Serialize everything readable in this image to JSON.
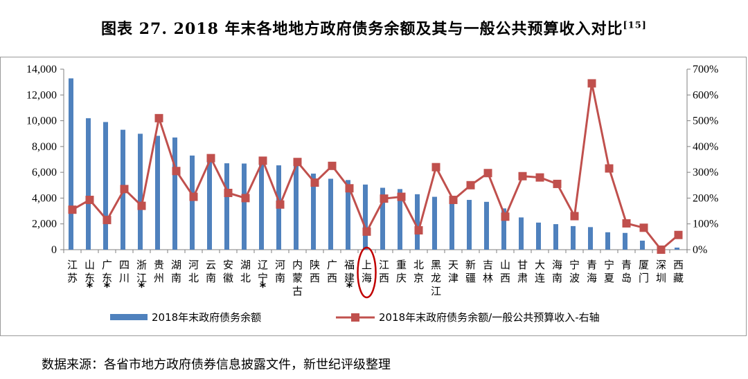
{
  "title": "图表 27. 2018 年末各地地方政府债务余额及其与一般公共预算收入对比",
  "title_ref": "[15]",
  "source": "数据来源：各省市地方政府债券信息披露文件，新世纪评级整理",
  "colors": {
    "bar": "#4f81bd",
    "line": "#c0504d",
    "highlight": "#c00000"
  },
  "chart_data": {
    "type": "bar+line",
    "categories": [
      "江苏",
      "山东",
      "广东",
      "四川",
      "浙江",
      "贵州",
      "湖南",
      "河北",
      "云南",
      "安徽",
      "湖北",
      "辽宁",
      "河南",
      "内蒙古",
      "陕西",
      "广西",
      "福建",
      "上海",
      "江西",
      "重庆",
      "北京",
      "黑龙江",
      "天津",
      "新疆",
      "吉林",
      "山西",
      "甘肃",
      "大连",
      "海南",
      "宁波",
      "青海",
      "宁夏",
      "青岛",
      "厦门",
      "深圳",
      "西藏"
    ],
    "category_labels": [
      "江苏",
      "山东*",
      "广东*",
      "四川",
      "浙江*",
      "贵州",
      "湖南",
      "河北",
      "云南",
      "安徽",
      "湖北",
      "辽宁*",
      "河南",
      "内蒙古",
      "陕西",
      "广西",
      "福建*",
      "上海",
      "江西",
      "重庆",
      "北京",
      "黑龙江",
      "天津",
      "新疆",
      "吉林",
      "山西",
      "甘肃",
      "大连",
      "海南",
      "宁波",
      "青海",
      "宁夏",
      "青岛",
      "厦门",
      "深圳",
      "西藏"
    ],
    "highlighted_category": "上海",
    "series": [
      {
        "name": "2018年末政府债务余额",
        "type": "bar",
        "axis": "left",
        "values": [
          13285,
          10197,
          9900,
          9300,
          8990,
          8830,
          8700,
          7300,
          7130,
          6700,
          6680,
          6700,
          6540,
          6550,
          5900,
          5500,
          5400,
          5050,
          4800,
          4700,
          4300,
          4100,
          4000,
          3860,
          3710,
          3200,
          2500,
          2100,
          1980,
          1830,
          1750,
          1350,
          1300,
          700,
          150,
          160
        ]
      },
      {
        "name": "2018年末政府债务余额/一般公共预算收入-右轴",
        "type": "line",
        "axis": "right",
        "values": [
          155,
          193,
          115,
          235,
          170,
          510,
          305,
          205,
          355,
          220,
          200,
          345,
          175,
          340,
          260,
          325,
          238,
          70,
          198,
          205,
          75,
          320,
          193,
          250,
          297,
          128,
          285,
          280,
          255,
          130,
          645,
          315,
          102,
          85,
          0,
          57
        ]
      }
    ],
    "y_left": {
      "min": 0,
      "max": 14000,
      "ticks": [
        "0",
        "2,000",
        "4,000",
        "6,000",
        "8,000",
        "10,000",
        "12,000",
        "14,000"
      ]
    },
    "y_right": {
      "min": 0,
      "max": 700,
      "ticks": [
        "0%",
        "100%",
        "200%",
        "300%",
        "400%",
        "500%",
        "600%",
        "700%"
      ]
    },
    "legend_position": "bottom",
    "grid": false
  }
}
